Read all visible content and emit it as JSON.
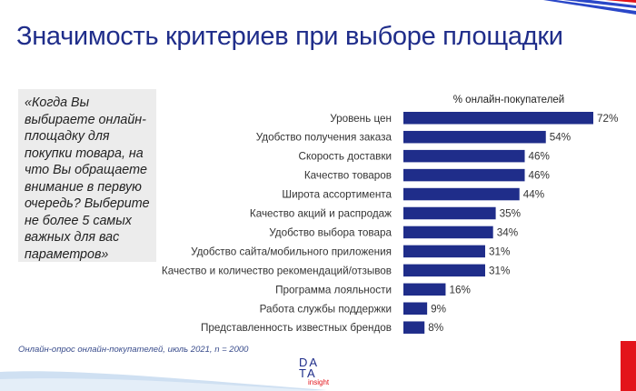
{
  "title": "Значимость критериев при выборе площадки",
  "question": "«Когда Вы\nвыбираете онлайн-\nплощадку для\nпокупки товара, на\nчто Вы обращаете\nвнимание в первую\nочередь? Выберите\nне более 5 самых\nважных для вас\nпараметров»",
  "source": "Онлайн-опрос онлайн-покупателей, июль 2021, n = 2000",
  "logo": {
    "line1": "DA",
    "line2": "TA",
    "line3": "insight"
  },
  "colors": {
    "bar": "#1f2d8a",
    "title": "#1f2d8a",
    "accent_red": "#e3141b",
    "stripe_blue": "#2a47c8",
    "wave": "#cfe0f2"
  },
  "chart_data": {
    "type": "bar",
    "orientation": "horizontal",
    "series_label": "% онлайн-покупателей",
    "categories": [
      "Уровень цен",
      "Удобство получения заказа",
      "Скорость доставки",
      "Качество товаров",
      "Широта ассортимента",
      "Качество акций и распродаж",
      "Удобство выбора товара",
      "Удобство сайта/мобильного приложения",
      "Качество и количество рекомендаций/отзывов",
      "Программа лояльности",
      "Работа службы поддержки",
      "Представленность известных брендов"
    ],
    "values": [
      72,
      54,
      46,
      46,
      44,
      35,
      34,
      31,
      31,
      16,
      9,
      8
    ],
    "value_suffix": "%",
    "grid": false
  }
}
